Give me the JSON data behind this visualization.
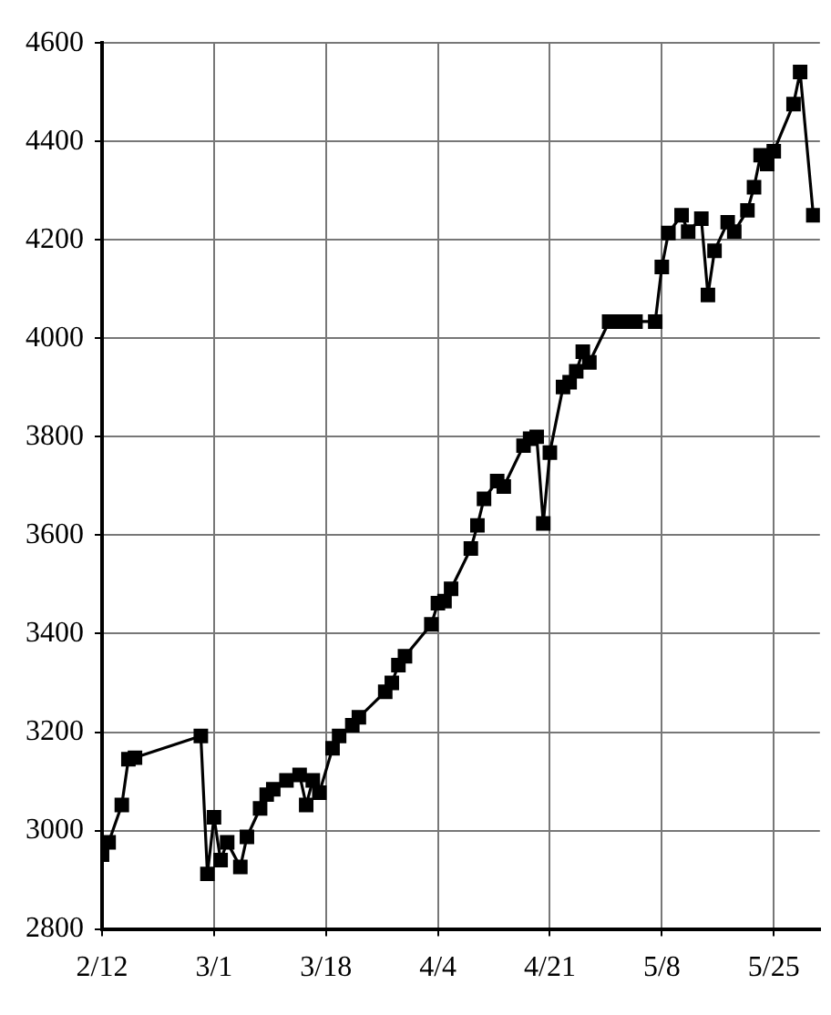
{
  "chart_data": {
    "type": "line",
    "x": [
      "--02-12",
      "--02-13",
      "--02-15",
      "--02-16",
      "--02-17",
      "--02-27",
      "--02-28",
      "--03-01",
      "--03-02",
      "--03-03",
      "--03-05",
      "--03-06",
      "--03-08",
      "--03-09",
      "--03-10",
      "--03-12",
      "--03-14",
      "--03-15",
      "--03-16",
      "--03-17",
      "--03-19",
      "--03-20",
      "--03-22",
      "--03-23",
      "--03-27",
      "--03-28",
      "--03-29",
      "--03-30",
      "--04-03",
      "--04-04",
      "--04-05",
      "--04-06",
      "--04-09",
      "--04-10",
      "--04-11",
      "--04-13",
      "--04-14",
      "--04-17",
      "--04-18",
      "--04-19",
      "--04-20",
      "--04-21",
      "--04-23",
      "--04-24",
      "--04-25",
      "--04-26",
      "--04-27",
      "--04-30",
      "--05-01",
      "--05-03",
      "--05-04",
      "--05-07",
      "--05-08",
      "--05-09",
      "--05-11",
      "--05-12",
      "--05-14",
      "--05-15",
      "--05-16",
      "--05-18",
      "--05-19",
      "--05-21",
      "--05-22",
      "--05-23",
      "--05-24",
      "--05-25",
      "--05-28",
      "--05-29",
      "--05-31"
    ],
    "series": [
      {
        "color": "#000000",
        "values": [
          2951,
          2976,
          3052,
          3145,
          3148,
          3192,
          2912,
          3027,
          2940,
          2976,
          2926,
          2987,
          3045,
          3073,
          3084,
          3102,
          3113,
          3052,
          3102,
          3077,
          3167,
          3192,
          3214,
          3230,
          3282,
          3300,
          3336,
          3354,
          3419,
          3462,
          3466,
          3491,
          3573,
          3620,
          3674,
          3710,
          3699,
          3782,
          3796,
          3800,
          3624,
          3768,
          3901,
          3911,
          3933,
          3973,
          3951,
          4034,
          4034,
          4034,
          4034,
          4034,
          4145,
          4214,
          4250,
          4217,
          4243,
          4088,
          4178,
          4236,
          4217,
          4260,
          4307,
          4372,
          4354,
          4380,
          4476,
          4541,
          4250
        ]
      }
    ],
    "xlim": [
      "--02-12",
      "--06-01"
    ],
    "xticks": [
      {
        "value": "--02-12",
        "label": "2/12"
      },
      {
        "value": "--03-01",
        "label": "3/1"
      },
      {
        "value": "--03-18",
        "label": "3/18"
      },
      {
        "value": "--04-04",
        "label": "4/4"
      },
      {
        "value": "--04-21",
        "label": "4/21"
      },
      {
        "value": "--05-08",
        "label": "5/8"
      },
      {
        "value": "--05-25",
        "label": "5/25"
      }
    ],
    "ylim": [
      2800,
      4600
    ],
    "yticks": [
      2800,
      3000,
      3200,
      3400,
      3600,
      3800,
      4000,
      4200,
      4400,
      4600
    ],
    "grid": true,
    "legend": false,
    "marker": "square",
    "line_style": "solid"
  }
}
